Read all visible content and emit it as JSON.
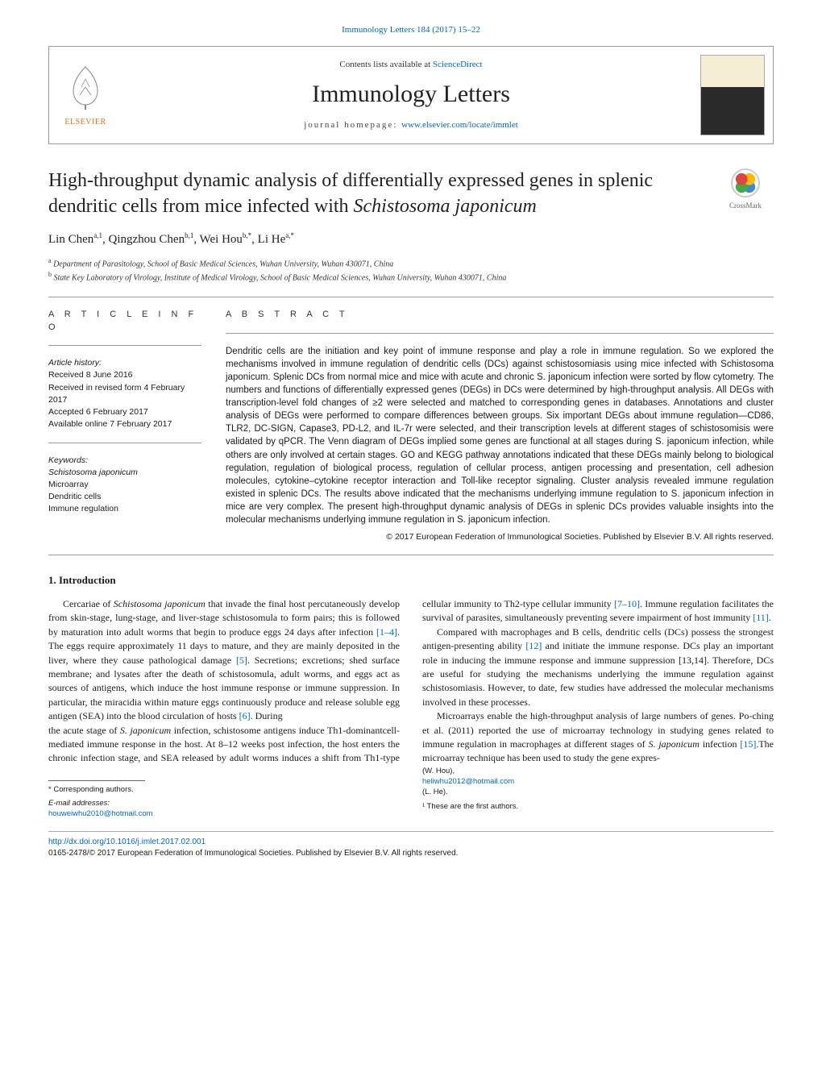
{
  "top_journal_line": "Immunology Letters 184 (2017) 15–22",
  "header": {
    "contents_text": "Contents lists available at ",
    "sd_text": "ScienceDirect",
    "journal_name": "Immunology Letters",
    "homepage_label": "journal homepage: ",
    "homepage_url": "www.elsevier.com/locate/immlet",
    "elsevier_label": "ELSEVIER"
  },
  "crossmark_label": "CrossMark",
  "title_pre": "High-throughput dynamic analysis of differentially expressed genes in splenic dendritic cells from mice infected with ",
  "title_italic": "Schistosoma japonicum",
  "authors_html": "Lin Chen<sup>a,1</sup>, Qingzhou Chen<sup>b,1</sup>, Wei Hou<sup>b,*</sup>, Li He<sup>a,*</sup>",
  "affiliations": [
    {
      "sup": "a",
      "text": "Department of Parasitology, School of Basic Medical Sciences, Wuhan University, Wuhan 430071, China"
    },
    {
      "sup": "b",
      "text": "State Key Laboratory of Virology, Institute of Medical Virology, School of Basic Medical Sciences, Wuhan University, Wuhan 430071, China"
    }
  ],
  "info": {
    "heading": "a r t i c l e   i n f o",
    "history_label": "Article history:",
    "history": [
      "Received 8 June 2016",
      "Received in revised form 4 February 2017",
      "Accepted 6 February 2017",
      "Available online 7 February 2017"
    ],
    "keywords_label": "Keywords:",
    "keywords": [
      "Schistosoma japonicum",
      "Microarray",
      "Dendritic cells",
      "Immune regulation"
    ]
  },
  "abstract": {
    "heading": "a b s t r a c t",
    "text": "Dendritic cells are the initiation and key point of immune response and play a role in immune regulation. So we explored the mechanisms involved in immune regulation of dendritic cells (DCs) against schistosomiasis using mice infected with Schistosoma japonicum. Splenic DCs from normal mice and mice with acute and chronic S. japonicum infection were sorted by flow cytometry. The numbers and functions of differentially expressed genes (DEGs) in DCs were determined by high-throughput analysis. All DEGs with transcription-level fold changes of ≥2 were selected and matched to corresponding genes in databases. Annotations and cluster analysis of DEGs were performed to compare differences between groups. Six important DEGs about immune regulation—CD86, TLR2, DC-SIGN, Capase3, PD-L2, and IL-7r were selected, and their transcription levels at different stages of schistosomisis were validated by qPCR. The Venn diagram of DEGs implied some genes are functional at all stages during S. japonicum infection, while others are only involved at certain stages. GO and KEGG pathway annotations indicated that these DEGs mainly belong to biological regulation, regulation of biological process, regulation of cellular process, antigen processing and presentation, cell adhesion molecules, cytokine–cytokine receptor interaction and Toll-like receptor signaling. Cluster analysis revealed immune regulation existed in splenic DCs. The results above indicated that the mechanisms underlying immune regulation to S. japonicum infection in mice are very complex. The present high-throughput dynamic analysis of DEGs in splenic DCs provides valuable insights into the molecular mechanisms underlying immune regulation in S. japonicum infection.",
    "copyright": "© 2017 European Federation of Immunological Societies. Published by Elsevier B.V. All rights reserved."
  },
  "section1_heading": "1. Introduction",
  "body_paragraphs": [
    "Cercariae of Schistosoma japonicum that invade the final host percutaneously develop from skin-stage, lung-stage, and liver-stage schistosomula to form pairs; this is followed by maturation into adult worms that begin to produce eggs 24 days after infection [1–4]. The eggs require approximately 11 days to mature, and they are mainly deposited in the liver, where they cause pathological damage [5]. Secretions; excretions; shed surface membrane; and lysates after the death of schistosomula, adult worms, and eggs act as sources of antigens, which induce the host immune response or immune suppression. In particular, the miracidia within mature eggs continuously produce and release soluble egg antigen (SEA) into the blood circulation of hosts [6]. During",
    "the acute stage of S. japonicum infection, schistosome antigens induce Th1-dominantcell-mediated immune response in the host. At 8–12 weeks post infection, the host enters the chronic infection stage, and SEA released by adult worms induces a shift from Th1-type cellular immunity to Th2-type cellular immunity [7–10]. Immune regulation facilitates the survival of parasites, simultaneously preventing severe impairment of host immunity [11].",
    "Compared with macrophages and B cells, dendritic cells (DCs) possess the strongest antigen-presenting ability [12] and initiate the immune response. DCs play an important role in inducing the immune response and immune suppression [13,14]. Therefore, DCs are useful for studying the mechanisms underlying the immune regulation against schistosomiasis. However, to date, few studies have addressed the molecular mechanisms involved in these processes.",
    "Microarrays enable the high-throughput analysis of large numbers of genes. Po-ching et al. (2011) reported the use of microarray technology in studying genes related to immune regulation in macrophages at different stages of S. japonicum infection [15].The microarray technique has been used to study the gene expres-"
  ],
  "footnotes": {
    "corr_label": "* Corresponding authors.",
    "email_label": "E-mail addresses: ",
    "email1": "houweiwhu2010@hotmail.com",
    "email1_who": " (W. Hou), ",
    "email2": "heliwhu2012@hotmail.com",
    "email2_who": " (L. He).",
    "fn1": "¹ These are the first authors."
  },
  "bottom": {
    "doi": "http://dx.doi.org/10.1016/j.imlet.2017.02.001",
    "issn_line": "0165-2478/© 2017 European Federation of Immunological Societies. Published by Elsevier B.V. All rights reserved."
  },
  "colors": {
    "link": "#0066cc",
    "elsevier_orange": "#e8701a",
    "text": "#1a1a1a",
    "rule": "#999999"
  }
}
